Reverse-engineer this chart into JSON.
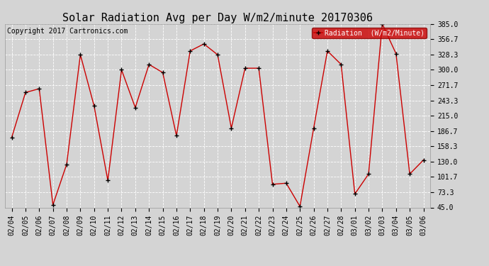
{
  "title": "Solar Radiation Avg per Day W/m2/minute 20170306",
  "copyright": "Copyright 2017 Cartronics.com",
  "legend_label": "Radiation  (W/m2/Minute)",
  "dates": [
    "02/04",
    "02/05",
    "02/06",
    "02/07",
    "02/08",
    "02/09",
    "02/10",
    "02/11",
    "02/12",
    "02/13",
    "02/14",
    "02/15",
    "02/16",
    "02/17",
    "02/18",
    "02/19",
    "02/20",
    "02/21",
    "02/22",
    "02/23",
    "02/24",
    "02/25",
    "02/26",
    "02/27",
    "02/28",
    "03/01",
    "03/02",
    "03/03",
    "03/04",
    "03/05",
    "03/06"
  ],
  "values": [
    175,
    258,
    265,
    50,
    125,
    328,
    233,
    95,
    300,
    230,
    310,
    295,
    178,
    335,
    348,
    328,
    192,
    303,
    303,
    88,
    90,
    47,
    192,
    335,
    310,
    70,
    107,
    385,
    330,
    107,
    133
  ],
  "ylim": [
    45.0,
    385.0
  ],
  "yticks": [
    45.0,
    73.3,
    101.7,
    130.0,
    158.3,
    186.7,
    215.0,
    243.3,
    271.7,
    300.0,
    328.3,
    356.7,
    385.0
  ],
  "line_color": "#cc0000",
  "marker_color": "#000000",
  "bg_color": "#d4d4d4",
  "grid_color": "#ffffff",
  "title_fontsize": 11,
  "copyright_fontsize": 7,
  "tick_fontsize": 7,
  "legend_bg": "#cc0000",
  "legend_text_color": "#ffffff"
}
